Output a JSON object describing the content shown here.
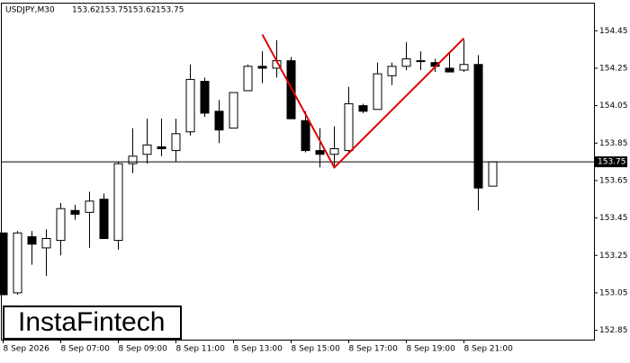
{
  "chart_data": {
    "type": "candlestick",
    "symbol": "USDJPY,M30",
    "watermark": "InstaFintech",
    "categories": [
      "8 Sep 2026",
      null,
      null,
      null,
      "8 Sep 07:00",
      null,
      null,
      null,
      "8 Sep 09:00",
      null,
      null,
      null,
      "8 Sep 11:00",
      null,
      null,
      null,
      "8 Sep 13:00",
      null,
      null,
      null,
      "8 Sep 15:00",
      null,
      null,
      null,
      "8 Sep 17:00",
      null,
      null,
      null,
      "8 Sep 19:00",
      null,
      null,
      null,
      "8 Sep 21:00",
      null,
      null
    ],
    "open": [
      153.37,
      153.05,
      153.35,
      153.29,
      153.33,
      153.49,
      153.48,
      153.55,
      153.33,
      153.74,
      153.79,
      153.83,
      153.81,
      153.91,
      154.18,
      154.02,
      153.93,
      154.13,
      154.26,
      154.25,
      154.29,
      153.97,
      153.81,
      153.79,
      153.81,
      154.05,
      154.03,
      154.21,
      154.26,
      154.29,
      154.28,
      154.25,
      154.24,
      154.27,
      153.62
    ],
    "high": [
      153.37,
      153.38,
      153.38,
      153.39,
      153.53,
      153.52,
      153.59,
      153.58,
      153.75,
      153.93,
      153.98,
      153.98,
      153.98,
      154.27,
      154.2,
      154.08,
      154.12,
      154.27,
      154.34,
      154.4,
      154.31,
      154.02,
      153.93,
      153.94,
      154.15,
      154.06,
      154.28,
      154.28,
      154.39,
      154.34,
      154.3,
      154.33,
      154.4,
      154.32,
      153.75
    ],
    "low": [
      153.04,
      153.04,
      153.2,
      153.14,
      153.25,
      153.44,
      153.29,
      153.34,
      153.28,
      153.69,
      153.74,
      153.78,
      153.75,
      153.89,
      153.99,
      153.85,
      153.93,
      154.13,
      154.17,
      154.2,
      153.98,
      153.8,
      153.72,
      153.73,
      153.8,
      154.01,
      154.03,
      154.16,
      154.24,
      154.24,
      154.23,
      154.23,
      154.23,
      153.49,
      153.62
    ],
    "close": [
      153.04,
      153.37,
      153.31,
      153.34,
      153.5,
      153.47,
      153.54,
      153.34,
      153.74,
      153.78,
      153.84,
      153.82,
      153.9,
      154.19,
      154.01,
      153.92,
      154.12,
      154.26,
      154.25,
      154.29,
      153.98,
      153.81,
      153.79,
      153.82,
      154.06,
      154.02,
      154.22,
      154.26,
      154.3,
      154.29,
      154.26,
      154.23,
      154.27,
      153.61,
      153.75
    ],
    "up_color": "#ffffff",
    "down_color": "#000000",
    "ylim": [
      152.8,
      154.6
    ],
    "yticks": [
      152.85,
      153.05,
      153.25,
      153.45,
      153.65,
      153.85,
      154.05,
      154.25,
      154.45
    ],
    "price_line": 153.75,
    "pattern_line": {
      "color": "#e00000",
      "x": [
        18,
        23,
        32
      ],
      "y": [
        154.43,
        153.72,
        154.41
      ]
    }
  }
}
